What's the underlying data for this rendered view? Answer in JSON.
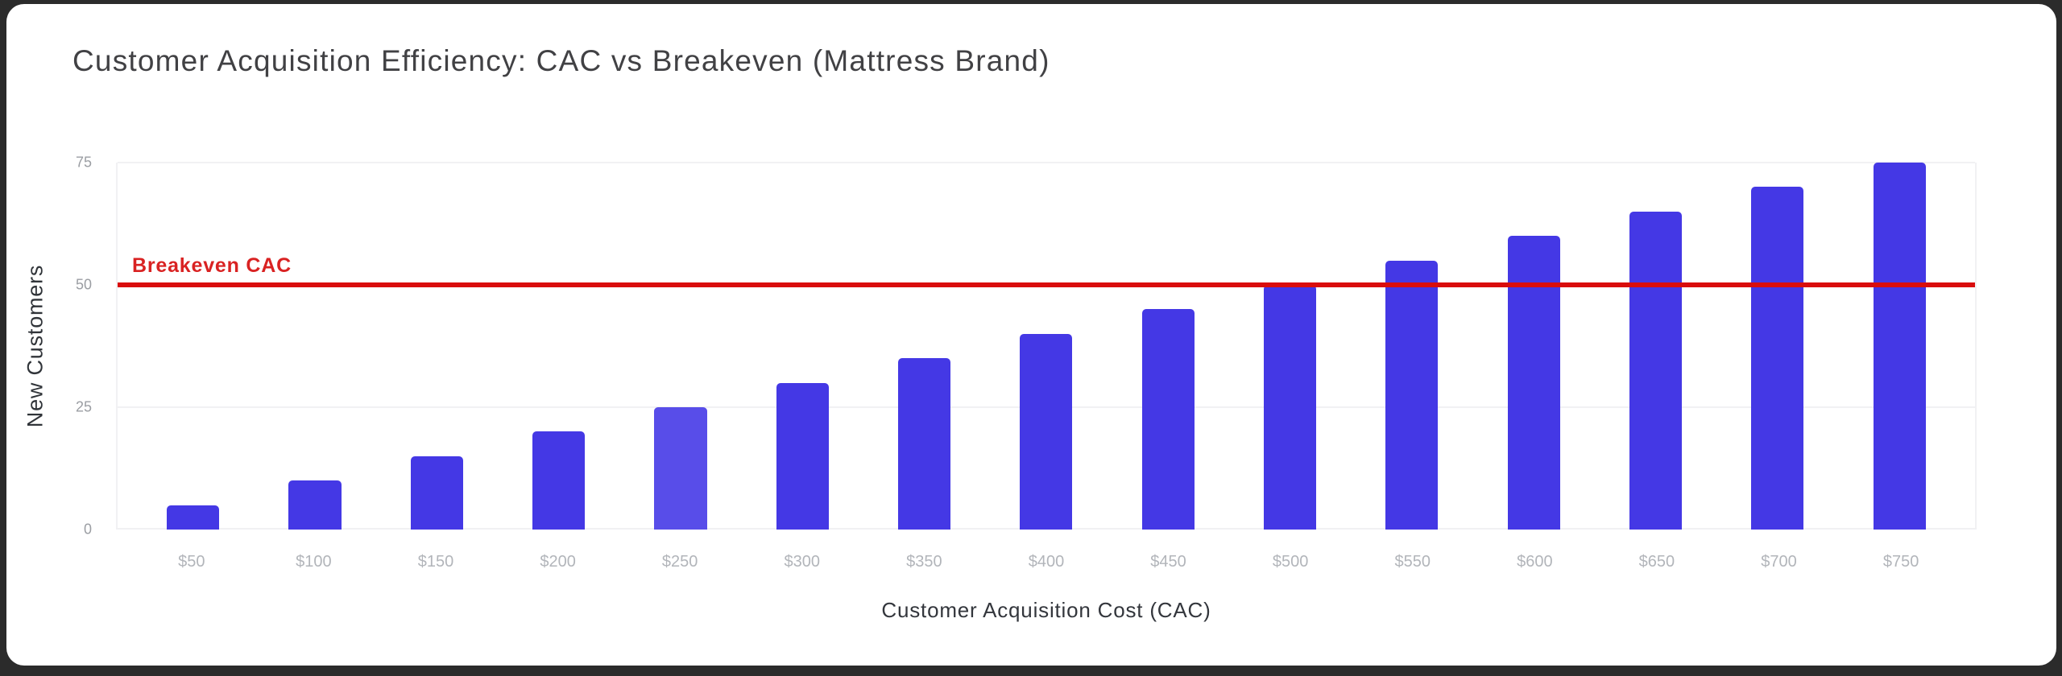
{
  "window": {
    "background_color": "#2b2b2b",
    "card_color": "#ffffff"
  },
  "header": {
    "title": "Customer Acquisition Efficiency: CAC vs Breakeven (Mattress Brand)"
  },
  "chart_data": {
    "type": "bar",
    "title": "Customer Acquisition Efficiency: CAC vs Breakeven (Mattress Brand)",
    "categories": [
      "$50",
      "$100",
      "$150",
      "$200",
      "$250",
      "$300",
      "$350",
      "$400",
      "$450",
      "$500",
      "$550",
      "$600",
      "$650",
      "$700",
      "$750"
    ],
    "values": [
      5,
      10,
      15,
      20,
      25,
      30,
      35,
      40,
      45,
      50,
      55,
      60,
      65,
      70,
      75
    ],
    "highlight_index": 4,
    "xlabel": "Customer Acquisition Cost (CAC)",
    "ylabel": "New Customers",
    "yticks": [
      0,
      25,
      50,
      75
    ],
    "ylim": [
      0,
      75
    ],
    "grid": true,
    "legend": "none",
    "reference_line": {
      "label": "Breakeven CAC",
      "value": 50
    },
    "colors": {
      "bar": "#4438e5",
      "bar_highlight": "#584de9",
      "reference_line": "#d90d0d",
      "reference_label": "#d92222",
      "gridline": "#f1f1f3",
      "ytick_text": "#9b9ea3",
      "xtick_text": "#b2b5ba",
      "title_text": "#414144",
      "axis_title_text": "#33363c"
    }
  }
}
